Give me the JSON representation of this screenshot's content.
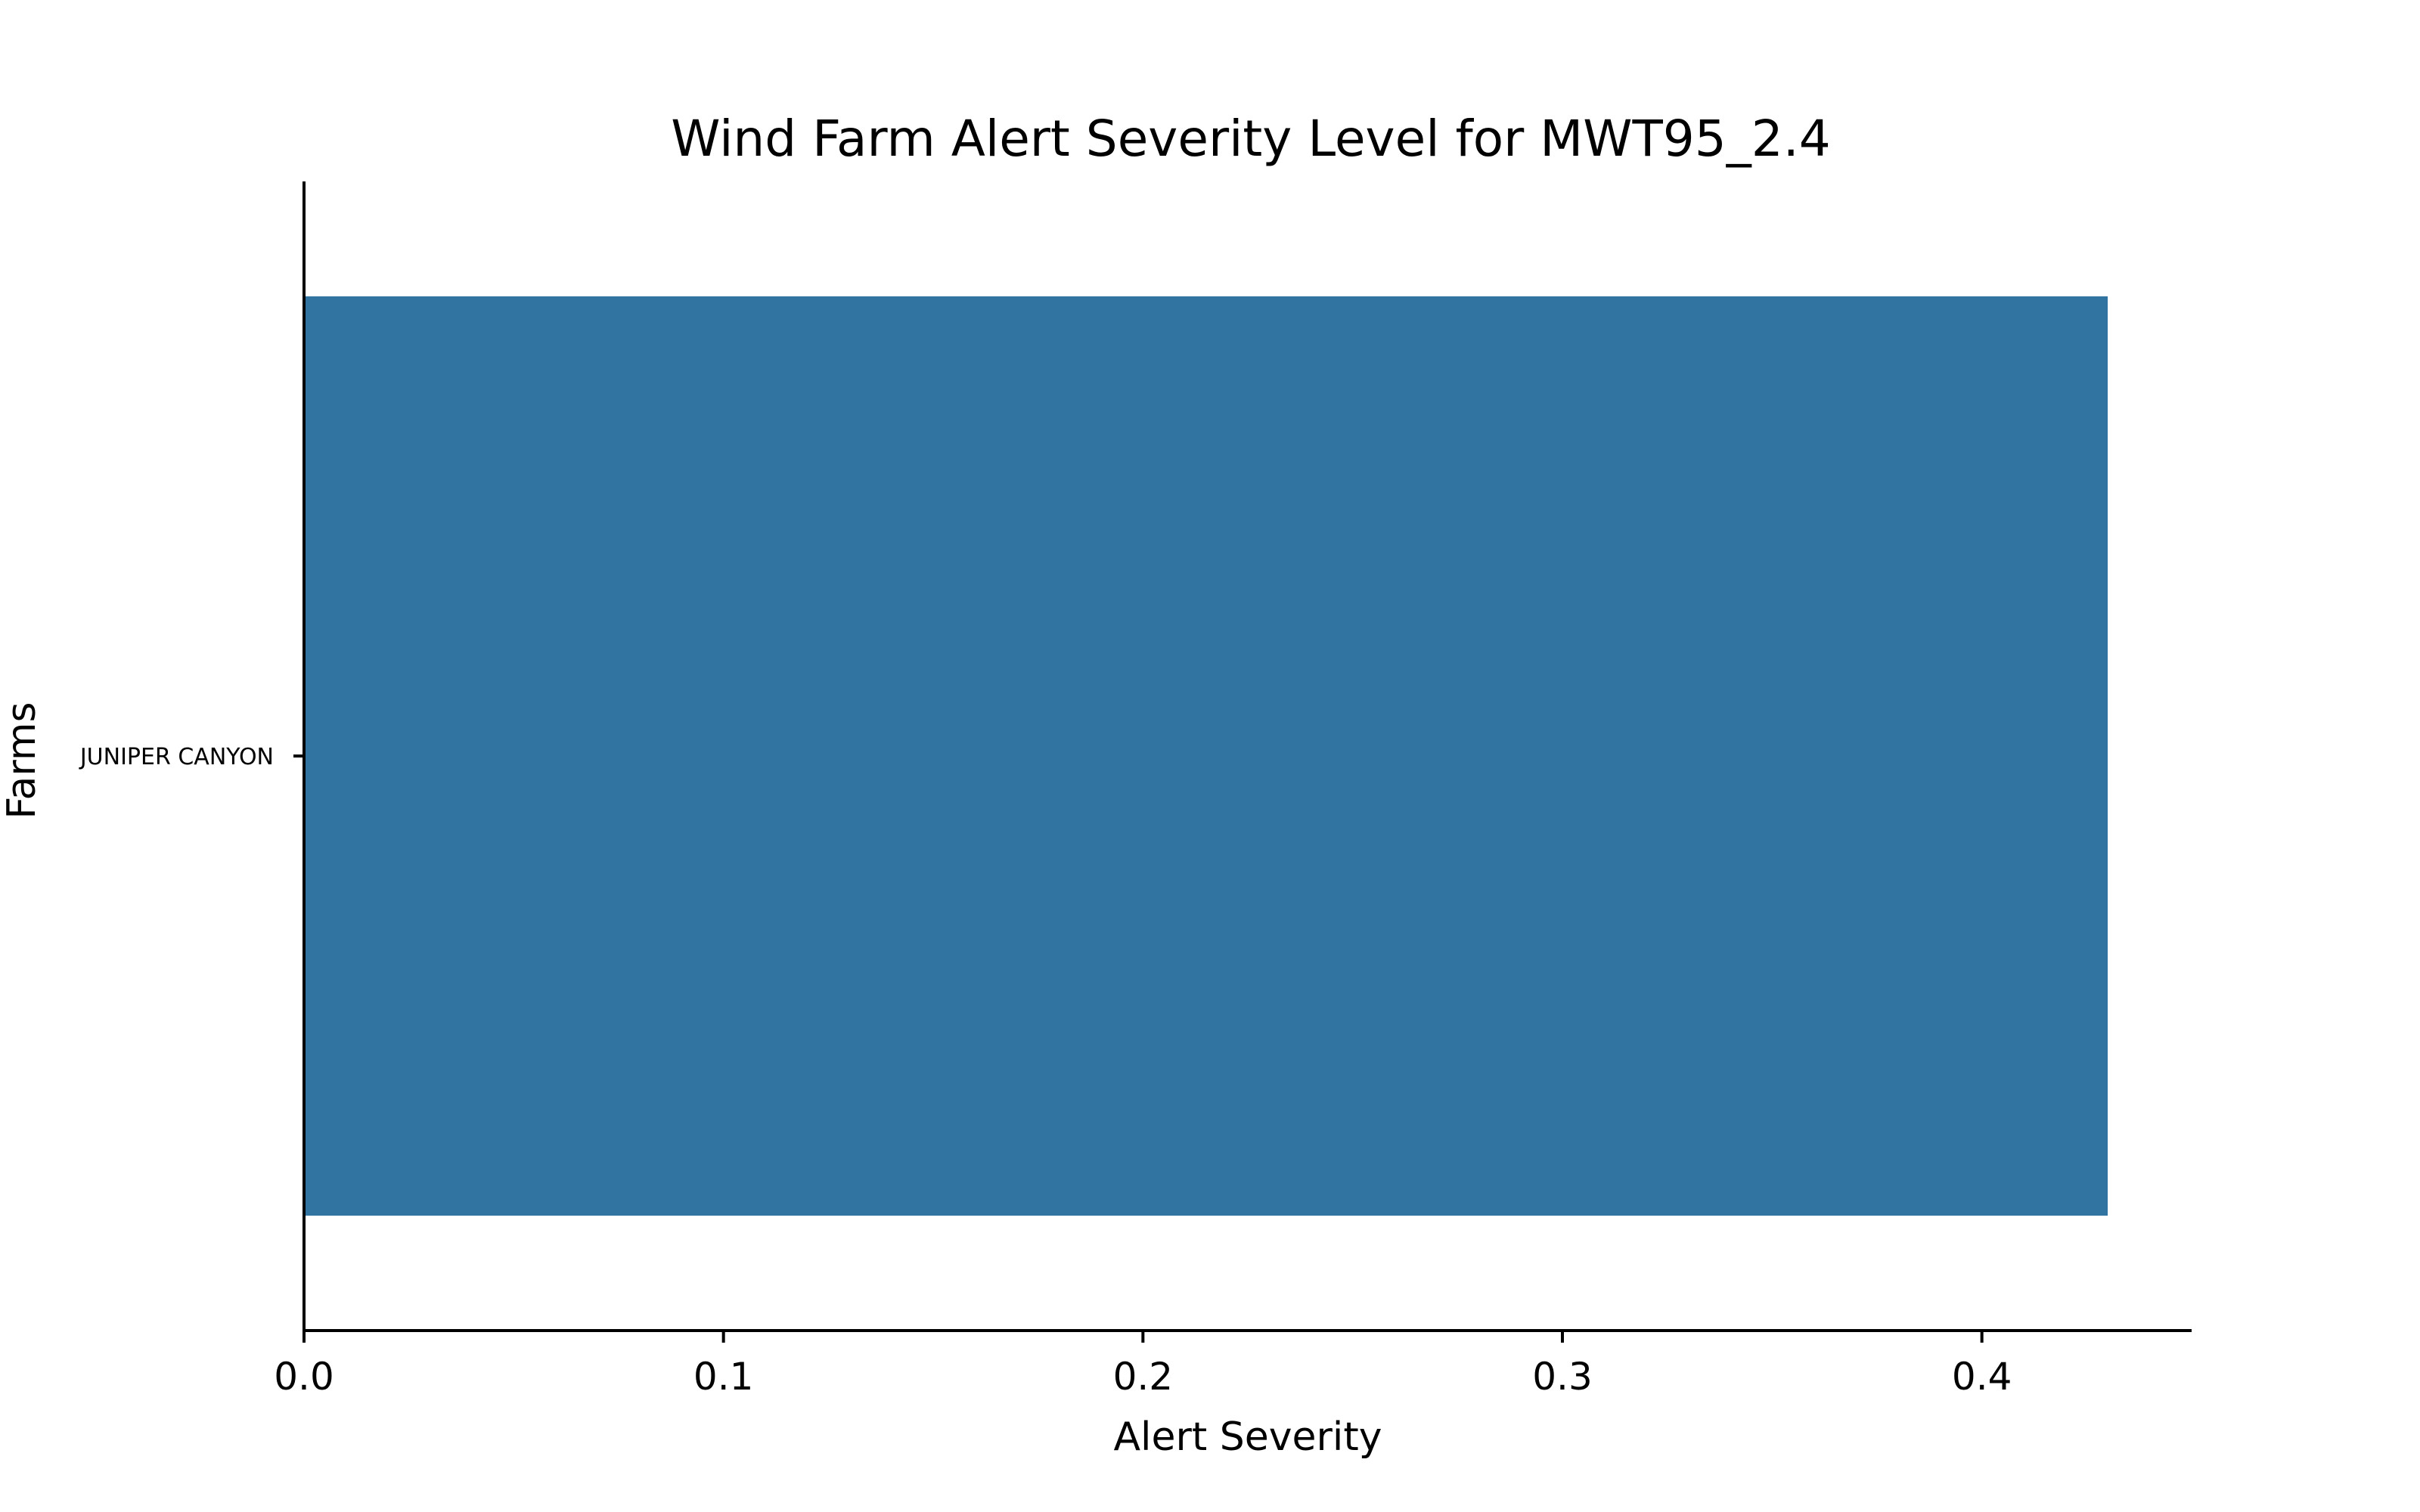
{
  "chart_data": {
    "type": "bar",
    "orientation": "horizontal",
    "title": "Wind Farm Alert Severity Level for MWT95_2.4",
    "xlabel": "Alert Severity",
    "ylabel": "Farms",
    "categories": [
      "JUNIPER CANYON"
    ],
    "values": [
      0.43
    ],
    "xlim": [
      0,
      0.45
    ],
    "xticks": [
      "0.0",
      "0.1",
      "0.2",
      "0.3",
      "0.4"
    ],
    "grid": false,
    "bar_color": "#3274a1"
  }
}
